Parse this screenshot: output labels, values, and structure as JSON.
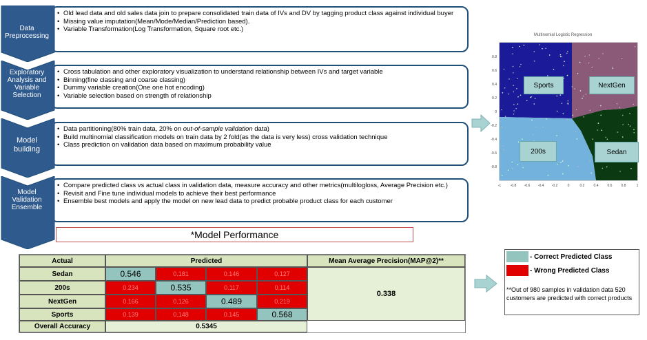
{
  "stages": [
    {
      "label_lines": [
        "Data",
        "Preprocessing"
      ],
      "bullets": [
        "Old lead data and old sales data join to prepare consolidated train data of IVs and DV by tagging product class against individual buyer",
        "Missing value imputation(Mean/Mode/Median/Prediction  based).",
        "Variable Transformation(Log Transformation, Square root etc.)"
      ]
    },
    {
      "label_lines": [
        "Exploratory",
        "Analysis and",
        "Variable",
        "Selection"
      ],
      "bullets": [
        "Cross tabulation and other exploratory visualization to understand relationship between IVs and target variable",
        "Binning(fine classing and coarse classing)",
        "Dummy  variable creation(One one hot encoding)",
        "Variable selection based on strength of relationship"
      ]
    },
    {
      "label_lines": [
        "Model",
        "building"
      ],
      "bullets": [
        {
          "pre": "Data partitioning(80% train data, 20% on ",
          "em": "out-of-sample validation",
          "post": " data)"
        },
        "Build multinomial  classification models on train data by 2 fold(as the data is very less) cross validation technique",
        "Class prediction on validation data based on maximum  probability value"
      ]
    },
    {
      "label_lines": [
        "Model",
        "Validation",
        "Ensemble"
      ],
      "bullets": [
        "Compare predicted class vs actual class in validation data, measure accuracy and other metrics(multilogloss, Average Precision etc.)",
        "Revisit and Fine tune individual models to achieve their best performance",
        "Ensemble best models and apply the model on new lead data to predict probable product class for each customer"
      ]
    }
  ],
  "performance_title": "*Model Performance",
  "table": {
    "header_actual": "Actual",
    "header_predicted": "Predicted",
    "header_map": "Mean Average Precision(MAP@2)**",
    "rows": [
      "Sedan",
      "200s",
      "NextGen",
      "Sports"
    ],
    "diagonal": [
      "0.546",
      "0.535",
      "0.489",
      "0.568"
    ],
    "off_diagonal": [
      [
        "0.181",
        "0.146",
        "0.127"
      ],
      [
        "0.234",
        "0.117",
        "0.114"
      ],
      [
        "0.166",
        "0.126",
        "0.219"
      ],
      [
        "0.139",
        "0.148",
        "0.145"
      ]
    ],
    "map_value": "0.338",
    "overall_label": "Overall Accuracy",
    "overall_value": "0.5345"
  },
  "plot": {
    "title": "Multinomial Logistic Regression",
    "regions": [
      "Sports",
      "NextGen",
      "200s",
      "Sedan"
    ],
    "region_colors": {
      "Sports": "#1b1b9a",
      "NextGen": "#8b5a78",
      "200s": "#73b2dd",
      "Sedan": "#0b3a12"
    },
    "x_ticks": [
      "-1",
      "-0.8",
      "-0.6",
      "-0.4",
      "-0.2",
      "0",
      "0.2",
      "0.4",
      "0.6",
      "0.8",
      "1"
    ],
    "y_ticks": [
      "0.8",
      "0.6",
      "0.4",
      "0.2",
      "0",
      "-0.2",
      "-0.4",
      "-0.6",
      "-0.8"
    ]
  },
  "legend": {
    "correct_label": "- Correct Predicted  Class",
    "wrong_label": "- Wrong Predicted  Class",
    "correct_color": "#93c4bd",
    "wrong_color": "#e00000",
    "note": "**Out of 980 samples in validation data 520 customers are predicted with correct products"
  }
}
